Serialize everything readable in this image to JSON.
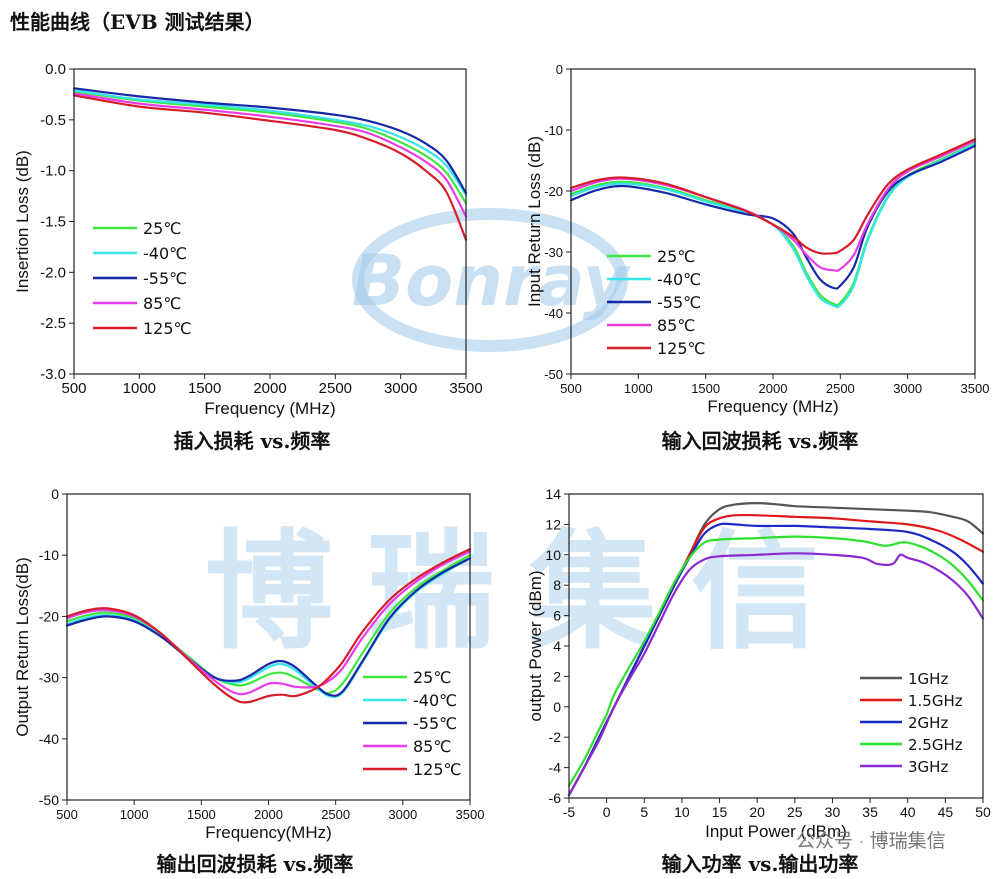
{
  "page": {
    "title_cn": "性能曲线（",
    "title_en": "EVB",
    "title_cn2": " 测试结果）"
  },
  "watermark": {
    "logo_text": "Bonray",
    "big_text": "博瑞集信",
    "footer_prefix": "公众号",
    "footer_sep": "·",
    "footer_name": "博瑞集信"
  },
  "colors": {
    "green": "#3ee63e",
    "cyan": "#36e4ec",
    "navy": "#1528a8",
    "magenta": "#e83ce8",
    "red": "#d61e2a",
    "gray": "#555555",
    "red2": "#e01818",
    "blue2": "#1c28c8",
    "green2": "#2ee02e",
    "purple": "#8a2ad0",
    "watermark": "#9ec8ea"
  },
  "chart_data": [
    {
      "id": "il",
      "type": "line",
      "caption_cn": "插入损耗",
      "caption_en": "vs.",
      "caption_cn2": "频率",
      "xlabel": "Frequency (MHz)",
      "ylabel": "Insertion Loss (dB)",
      "xlim": [
        500,
        3500
      ],
      "ylim": [
        -3.0,
        0.0
      ],
      "xticks": [
        500,
        1000,
        1500,
        2000,
        2500,
        3000,
        3500
      ],
      "yticks": [
        0.0,
        -0.5,
        -1.0,
        -1.5,
        -2.0,
        -2.5,
        -3.0
      ],
      "ytick_labels": [
        "0.0",
        "-0.5",
        "-1.0",
        "-1.5",
        "-2.0",
        "-2.5",
        "-3.0"
      ],
      "legend_position": "bottom-left",
      "x": [
        500,
        1000,
        1500,
        2000,
        2500,
        2750,
        3000,
        3200,
        3350,
        3500
      ],
      "series": [
        {
          "name": "25℃",
          "color": "#3ee63e",
          "values": [
            -0.22,
            -0.31,
            -0.37,
            -0.43,
            -0.52,
            -0.59,
            -0.72,
            -0.86,
            -1.02,
            -1.32
          ]
        },
        {
          "name": "-40℃",
          "color": "#36e4ec",
          "values": [
            -0.21,
            -0.3,
            -0.35,
            -0.41,
            -0.5,
            -0.56,
            -0.67,
            -0.8,
            -0.95,
            -1.24
          ]
        },
        {
          "name": "-55℃",
          "color": "#1528a8",
          "values": [
            -0.19,
            -0.27,
            -0.33,
            -0.38,
            -0.45,
            -0.51,
            -0.61,
            -0.74,
            -0.9,
            -1.22
          ]
        },
        {
          "name": "85℃",
          "color": "#e83ce8",
          "values": [
            -0.24,
            -0.34,
            -0.4,
            -0.47,
            -0.56,
            -0.63,
            -0.77,
            -0.92,
            -1.09,
            -1.45
          ]
        },
        {
          "name": "125℃",
          "color": "#d61e2a",
          "values": [
            -0.26,
            -0.37,
            -0.43,
            -0.51,
            -0.6,
            -0.69,
            -0.83,
            -1.01,
            -1.21,
            -1.68
          ]
        }
      ]
    },
    {
      "id": "irl",
      "type": "line",
      "caption_cn": "输入回波损耗",
      "caption_en": "vs.",
      "caption_cn2": "频率",
      "xlabel": "Frequency (MHz)",
      "ylabel": "Input Return Loss (dB)",
      "xlim": [
        500,
        3500
      ],
      "ylim": [
        -50,
        0
      ],
      "xticks": [
        500,
        1000,
        1500,
        2000,
        2500,
        3000,
        3500
      ],
      "yticks": [
        0,
        -10,
        -20,
        -30,
        -40,
        -50
      ],
      "ytick_labels": [
        "0",
        "-10",
        "-20",
        "-30",
        "-40",
        "-50"
      ],
      "legend_position": "bottom-left",
      "x": [
        500,
        700,
        900,
        1200,
        1500,
        1800,
        2000,
        2150,
        2250,
        2350,
        2450,
        2500,
        2600,
        2700,
        2850,
        3000,
        3250,
        3500
      ],
      "series": [
        {
          "name": "25℃",
          "color": "#3ee63e",
          "values": [
            -20.5,
            -19.0,
            -18.5,
            -19.5,
            -21.5,
            -23.5,
            -25.5,
            -29.0,
            -33.5,
            -37.0,
            -38.5,
            -38.3,
            -35.0,
            -28.0,
            -21.0,
            -17.5,
            -14.8,
            -12.2
          ]
        },
        {
          "name": "-40℃",
          "color": "#36e4ec",
          "values": [
            -20.8,
            -19.3,
            -18.8,
            -19.7,
            -21.7,
            -23.6,
            -25.5,
            -29.5,
            -34.0,
            -37.5,
            -38.8,
            -38.7,
            -35.5,
            -28.3,
            -21.2,
            -17.7,
            -15.0,
            -12.3
          ]
        },
        {
          "name": "-55℃",
          "color": "#1528a8",
          "values": [
            -21.5,
            -19.8,
            -19.2,
            -20.3,
            -22.2,
            -23.8,
            -24.5,
            -27.0,
            -31.0,
            -34.5,
            -35.9,
            -35.5,
            -32.5,
            -26.0,
            -20.2,
            -17.5,
            -15.2,
            -12.6
          ]
        },
        {
          "name": "85℃",
          "color": "#e83ce8",
          "values": [
            -20.0,
            -18.5,
            -18.0,
            -19.0,
            -21.0,
            -23.2,
            -25.5,
            -28.0,
            -30.5,
            -32.5,
            -33.0,
            -32.8,
            -30.5,
            -25.5,
            -19.8,
            -16.8,
            -14.3,
            -11.8
          ]
        },
        {
          "name": "125℃",
          "color": "#d61e2a",
          "values": [
            -19.5,
            -18.2,
            -17.8,
            -18.8,
            -21.0,
            -23.3,
            -25.5,
            -27.5,
            -29.3,
            -30.2,
            -30.2,
            -29.8,
            -28.0,
            -24.0,
            -19.0,
            -16.5,
            -14.0,
            -11.5
          ]
        }
      ]
    },
    {
      "id": "orl",
      "type": "line",
      "caption_cn": "输出回波损耗",
      "caption_en": "vs.",
      "caption_cn2": "频率",
      "xlabel": "Frequency(MHz)",
      "ylabel": "Output Return Loss(dB)",
      "xlim": [
        500,
        3500
      ],
      "ylim": [
        -50,
        0
      ],
      "xticks": [
        500,
        1000,
        1500,
        2000,
        2500,
        3000,
        3500
      ],
      "yticks": [
        0,
        -10,
        -20,
        -30,
        -40,
        -50
      ],
      "ytick_labels": [
        "0",
        "-10",
        "-20",
        "-30",
        "-40",
        "-50"
      ],
      "legend_position": "bottom-right",
      "x": [
        500,
        650,
        800,
        1000,
        1200,
        1400,
        1600,
        1750,
        1850,
        2000,
        2100,
        2200,
        2350,
        2450,
        2550,
        2700,
        2900,
        3100,
        3300,
        3500
      ],
      "series": [
        {
          "name": "25℃",
          "color": "#3ee63e",
          "values": [
            -20.8,
            -19.8,
            -19.4,
            -20.3,
            -23.0,
            -26.5,
            -30.0,
            -31.2,
            -31.0,
            -29.5,
            -29.2,
            -30.0,
            -31.8,
            -32.5,
            -31.0,
            -26.0,
            -19.5,
            -15.3,
            -12.5,
            -10.0
          ]
        },
        {
          "name": "-40℃",
          "color": "#36e4ec",
          "values": [
            -21.3,
            -20.2,
            -19.8,
            -20.6,
            -23.2,
            -26.8,
            -30.0,
            -30.8,
            -30.2,
            -28.3,
            -27.8,
            -28.8,
            -31.5,
            -33.0,
            -32.5,
            -27.5,
            -20.5,
            -16.0,
            -13.0,
            -10.5
          ]
        },
        {
          "name": "-55℃",
          "color": "#1528a8",
          "values": [
            -21.5,
            -20.5,
            -20.0,
            -20.8,
            -23.3,
            -26.8,
            -30.0,
            -30.5,
            -29.8,
            -27.8,
            -27.3,
            -28.3,
            -31.2,
            -32.8,
            -32.3,
            -27.3,
            -20.3,
            -15.8,
            -12.8,
            -10.5
          ]
        },
        {
          "name": "85℃",
          "color": "#e83ce8",
          "values": [
            -20.3,
            -19.3,
            -19.0,
            -20.0,
            -22.8,
            -26.8,
            -30.5,
            -32.5,
            -32.5,
            -31.0,
            -31.0,
            -31.5,
            -31.5,
            -30.5,
            -28.5,
            -23.5,
            -18.0,
            -14.3,
            -11.5,
            -9.4
          ]
        },
        {
          "name": "125℃",
          "color": "#d61e2a",
          "values": [
            -20.0,
            -19.0,
            -18.7,
            -19.8,
            -22.8,
            -27.0,
            -31.2,
            -33.6,
            -34.0,
            -33.0,
            -32.8,
            -33.0,
            -31.8,
            -30.0,
            -27.5,
            -22.5,
            -17.3,
            -13.8,
            -11.2,
            -9.0
          ]
        }
      ]
    },
    {
      "id": "pout",
      "type": "line",
      "caption_cn": "输入功率",
      "caption_en": "vs.",
      "caption_cn2": "输出功率",
      "xlabel": "Input Power (dBm)",
      "ylabel": "output Power (dBm)",
      "xlim": [
        -5,
        50
      ],
      "ylim": [
        -6,
        14
      ],
      "xticks": [
        -5,
        0,
        5,
        10,
        15,
        20,
        25,
        30,
        35,
        40,
        45,
        50
      ],
      "yticks": [
        -6,
        -4,
        -2,
        0,
        2,
        4,
        6,
        8,
        10,
        12,
        14
      ],
      "ytick_labels": [
        "-6",
        "-4",
        "-2",
        "0",
        "2",
        "4",
        "6",
        "8",
        "10",
        "12",
        "14"
      ],
      "legend_position": "bottom-right",
      "series": [
        {
          "name": "1GHz",
          "color": "#555555",
          "x": [
            -5,
            -3,
            -1,
            1,
            3,
            5,
            7,
            9,
            11,
            13,
            15,
            17,
            20,
            23,
            25,
            30,
            35,
            40,
            43,
            46,
            48,
            50
          ],
          "values": [
            -5.8,
            -4.0,
            -2.0,
            0.0,
            2.0,
            4.0,
            6.0,
            8.0,
            10.0,
            12.0,
            13.0,
            13.3,
            13.4,
            13.3,
            13.2,
            13.1,
            13.0,
            12.9,
            12.8,
            12.5,
            12.2,
            11.4
          ]
        },
        {
          "name": "1.5GHz",
          "color": "#e01818",
          "x": [
            -5,
            -3,
            -1,
            1,
            3,
            5,
            7,
            9,
            11,
            13,
            15,
            17,
            20,
            25,
            30,
            35,
            40,
            44,
            47,
            50
          ],
          "values": [
            -5.8,
            -4.0,
            -2.0,
            0.0,
            2.0,
            4.0,
            6.0,
            8.0,
            10.0,
            11.8,
            12.4,
            12.6,
            12.6,
            12.5,
            12.4,
            12.2,
            12.0,
            11.6,
            11.0,
            10.2
          ]
        },
        {
          "name": "2GHz",
          "color": "#1c28c8",
          "x": [
            -5,
            -3,
            -1,
            1,
            3,
            5,
            7,
            9,
            11,
            13,
            15,
            17,
            20,
            25,
            30,
            35,
            40,
            43,
            46,
            48,
            50
          ],
          "values": [
            -5.8,
            -4.0,
            -2.0,
            0.0,
            2.0,
            4.0,
            6.0,
            8.0,
            9.8,
            11.4,
            12.0,
            12.0,
            11.9,
            11.9,
            11.8,
            11.7,
            11.5,
            11.0,
            10.2,
            9.3,
            8.1
          ]
        },
        {
          "name": "2.5GHz",
          "color": "#2ee02e",
          "x": [
            -5,
            -3,
            -1,
            0,
            1,
            3,
            5,
            7,
            9,
            11,
            13,
            15,
            20,
            25,
            30,
            34,
            37,
            39,
            40,
            42,
            44,
            46,
            48,
            50
          ],
          "values": [
            -5.2,
            -3.5,
            -1.5,
            -0.5,
            0.8,
            2.6,
            4.3,
            6.2,
            8.2,
            9.8,
            10.8,
            11.0,
            11.1,
            11.2,
            11.1,
            10.9,
            10.6,
            10.8,
            10.8,
            10.5,
            10.0,
            9.3,
            8.3,
            7.0
          ]
        },
        {
          "name": "3GHz",
          "color": "#8a2ad0",
          "x": [
            -5,
            -3,
            -1,
            1,
            3,
            5,
            7,
            9,
            11,
            13,
            15,
            20,
            25,
            30,
            34,
            36,
            38,
            39,
            40,
            42,
            44,
            46,
            48,
            50
          ],
          "values": [
            -5.8,
            -4.0,
            -2.2,
            0.0,
            1.8,
            3.5,
            5.5,
            7.5,
            9.0,
            9.7,
            9.9,
            10.0,
            10.1,
            10.0,
            9.8,
            9.4,
            9.4,
            10.0,
            9.8,
            9.5,
            9.0,
            8.3,
            7.3,
            5.8
          ]
        }
      ]
    }
  ]
}
